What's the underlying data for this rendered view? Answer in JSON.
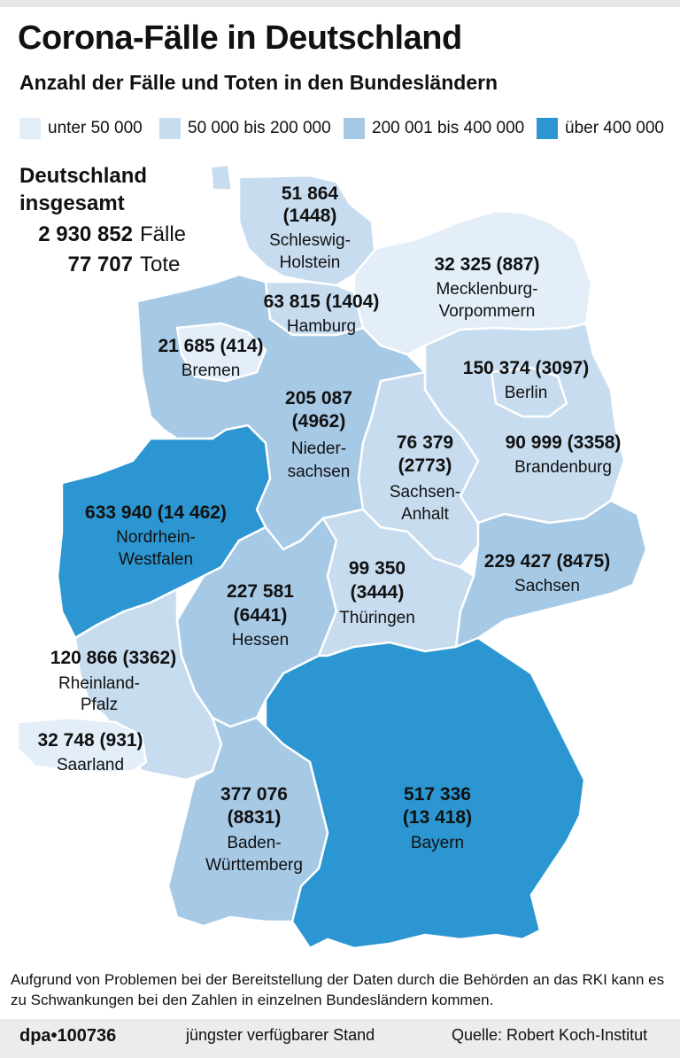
{
  "header": {
    "title": "Corona-Fälle in Deutschland",
    "subtitle": "Anzahl der Fälle und Toten in den Bundesländern"
  },
  "legend": [
    {
      "label": "unter 50 000",
      "color": "#e3eef8"
    },
    {
      "label": "50 000 bis 200 000",
      "color": "#c7dcef"
    },
    {
      "label": "200 001 bis 400 000",
      "color": "#a6c9e6"
    },
    {
      "label": "über 400 000",
      "color": "#2b96d1"
    }
  ],
  "total": {
    "heading_line1": "Deutschland",
    "heading_line2": "insgesamt",
    "cases": "2 930 852",
    "cases_label": "Fälle",
    "deaths": "77 707",
    "deaths_label": "Tote"
  },
  "states": [
    {
      "id": "sh",
      "cases": "51 864",
      "deaths": "(1448)",
      "name": "Schleswig-Holstein",
      "color": "#c7dcef"
    },
    {
      "id": "hh",
      "cases": "63 815",
      "deaths": "(1404)",
      "name": "Hamburg",
      "color": "#c7dcef"
    },
    {
      "id": "mv",
      "cases": "32 325",
      "deaths": "(887)",
      "name": "Mecklenburg-Vorpommern",
      "color": "#e3eef8"
    },
    {
      "id": "hb",
      "cases": "21 685",
      "deaths": "(414)",
      "name": "Bremen",
      "color": "#e3eef8"
    },
    {
      "id": "be",
      "cases": "150 374",
      "deaths": "(3097)",
      "name": "Berlin",
      "color": "#c7dcef"
    },
    {
      "id": "ni",
      "cases": "205 087",
      "deaths": "(4962)",
      "name": "Niedersachsen",
      "color": "#a6c9e6"
    },
    {
      "id": "st",
      "cases": "76 379",
      "deaths": "(2773)",
      "name": "Sachsen-Anhalt",
      "color": "#c7dcef"
    },
    {
      "id": "bb",
      "cases": "90 999",
      "deaths": "(3358)",
      "name": "Brandenburg",
      "color": "#c7dcef"
    },
    {
      "id": "nw",
      "cases": "633 940",
      "deaths": "(14 462)",
      "name": "Nordrhein-Westfalen",
      "color": "#2b96d1"
    },
    {
      "id": "sn",
      "cases": "229 427",
      "deaths": "(8475)",
      "name": "Sachsen",
      "color": "#a6c9e6"
    },
    {
      "id": "he",
      "cases": "227 581",
      "deaths": "(6441)",
      "name": "Hessen",
      "color": "#a6c9e6"
    },
    {
      "id": "th",
      "cases": "99 350",
      "deaths": "(3444)",
      "name": "Thüringen",
      "color": "#c7dcef"
    },
    {
      "id": "rp",
      "cases": "120 866",
      "deaths": "(3362)",
      "name": "Rheinland-Pfalz",
      "color": "#c7dcef"
    },
    {
      "id": "sl",
      "cases": "32 748",
      "deaths": "(931)",
      "name": "Saarland",
      "color": "#e3eef8"
    },
    {
      "id": "bw",
      "cases": "377 076",
      "deaths": "(8831)",
      "name": "Baden-Württemberg",
      "color": "#a6c9e6"
    },
    {
      "id": "by",
      "cases": "517 336",
      "deaths": "(13 418)",
      "name": "Bayern",
      "color": "#2b96d1"
    }
  ],
  "labels": {
    "sh": {
      "l1": "51 864",
      "l2": "(1448)",
      "n1": "Schleswig-",
      "n2": "Holstein"
    },
    "hh": {
      "l1": "63 815 (1404)",
      "n1": "Hamburg"
    },
    "mv": {
      "l1": "32 325 (887)",
      "n1": "Mecklenburg-",
      "n2": "Vorpommern"
    },
    "hb": {
      "l1": "21 685 (414)",
      "n1": "Bremen"
    },
    "be": {
      "l1": "150 374 (3097)",
      "n1": "Berlin"
    },
    "ni": {
      "l1": "205 087",
      "l2": "(4962)",
      "n1": "Nieder-",
      "n2": "sachsen"
    },
    "st": {
      "l1": "76 379",
      "l2": "(2773)",
      "n1": "Sachsen-",
      "n2": "Anhalt"
    },
    "bb": {
      "l1": "90 999 (3358)",
      "n1": "Brandenburg"
    },
    "nw": {
      "l1": "633 940 (14 462)",
      "n1": "Nordrhein-",
      "n2": "Westfalen"
    },
    "sn": {
      "l1": "229 427 (8475)",
      "n1": "Sachsen"
    },
    "he": {
      "l1": "227 581",
      "l2": "(6441)",
      "n1": "Hessen"
    },
    "th": {
      "l1": "99 350",
      "l2": "(3444)",
      "n1": "Thüringen"
    },
    "rp": {
      "l1": "120 866 (3362)",
      "n1": "Rheinland-",
      "n2": "Pfalz"
    },
    "sl": {
      "l1": "32 748 (931)",
      "n1": "Saarland"
    },
    "bw": {
      "l1": "377 076",
      "l2": "(8831)",
      "n1": "Baden-",
      "n2": "Württemberg"
    },
    "by": {
      "l1": "517 336",
      "l2": "(13 418)",
      "n1": "Bayern"
    }
  },
  "note": "Aufgrund von Problemen bei der Bereitstellung der Daten durch die Behörden an das RKI kann es zu Schwankungen bei den Zahlen in einzelnen Bundesländern kommen.",
  "footer": {
    "logo": "dpa•100736",
    "stand": "jüngster verfügbarer Stand",
    "source": "Quelle: Robert Koch-Institut"
  }
}
